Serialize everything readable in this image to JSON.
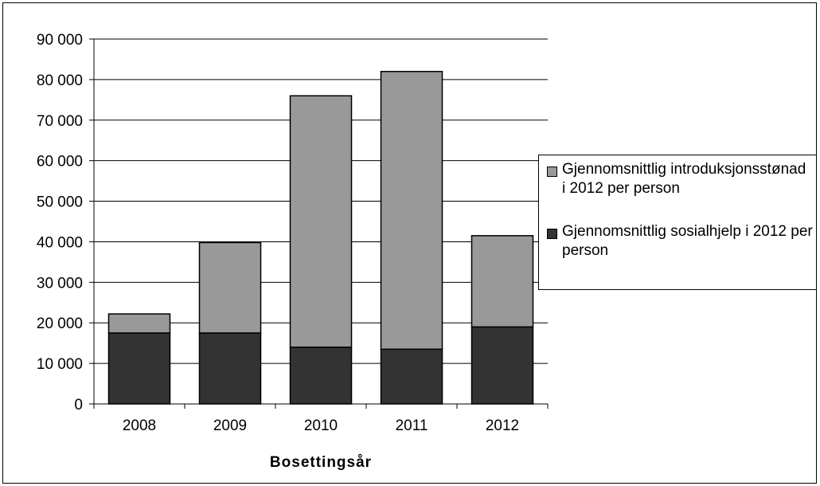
{
  "chart_data": {
    "type": "bar",
    "stacked": true,
    "categories": [
      "2008",
      "2009",
      "2010",
      "2011",
      "2012"
    ],
    "series": [
      {
        "name": "Gjennomsnittlig sosialhjelp i 2012 per person",
        "values": [
          17500,
          17500,
          14000,
          13500,
          19000
        ],
        "color": "#333333"
      },
      {
        "name": "Gjennomsnittlig introduksjonsstønad i 2012 per person",
        "values": [
          4700,
          22300,
          62000,
          68500,
          22500
        ],
        "color": "#999999"
      }
    ],
    "title": "",
    "xlabel": "Bosettingsår",
    "ylabel": "",
    "ylim": [
      0,
      90000
    ],
    "yticks": [
      0,
      10000,
      20000,
      30000,
      40000,
      50000,
      60000,
      70000,
      80000,
      90000
    ],
    "ytick_labels": [
      "0",
      "10 000",
      "20 000",
      "30 000",
      "40 000",
      "50 000",
      "60 000",
      "70 000",
      "80 000",
      "90 000"
    ],
    "grid": true,
    "legend_position": "right"
  }
}
